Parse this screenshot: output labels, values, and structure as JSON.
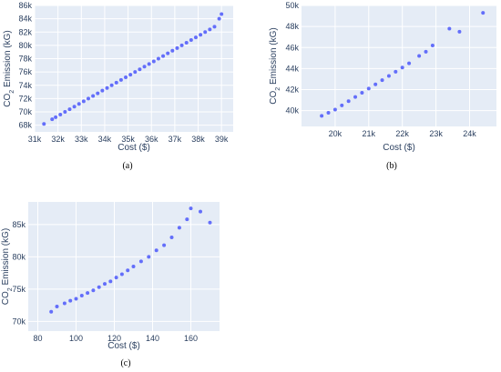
{
  "chart_data": [
    {
      "type": "scatter",
      "panel_label": "(a)",
      "xlabel": "Cost ($)",
      "ylabel_parts": [
        "CO",
        "2",
        " Emission (kG)"
      ],
      "xlim": [
        31000,
        39500
      ],
      "ylim": [
        67000,
        86000
      ],
      "xticks": [
        31000,
        32000,
        33000,
        34000,
        35000,
        36000,
        37000,
        38000,
        39000
      ],
      "xtick_labels": [
        "31k",
        "32k",
        "33k",
        "34k",
        "35k",
        "36k",
        "37k",
        "38k",
        "39k"
      ],
      "yticks": [
        68000,
        70000,
        72000,
        74000,
        76000,
        78000,
        80000,
        82000,
        84000,
        86000
      ],
      "ytick_labels": [
        "68k",
        "70k",
        "72k",
        "74k",
        "76k",
        "78k",
        "80k",
        "82k",
        "84k",
        "86k"
      ],
      "grid": true,
      "marker_color": "#636efa",
      "background": "#e5ecf6",
      "points": [
        [
          31400,
          68200
        ],
        [
          31750,
          68900
        ],
        [
          31900,
          69200
        ],
        [
          32100,
          69600
        ],
        [
          32300,
          70000
        ],
        [
          32500,
          70400
        ],
        [
          32700,
          70800
        ],
        [
          32900,
          71200
        ],
        [
          33100,
          71600
        ],
        [
          33300,
          72000
        ],
        [
          33500,
          72400
        ],
        [
          33700,
          72800
        ],
        [
          33900,
          73200
        ],
        [
          34100,
          73600
        ],
        [
          34300,
          74000
        ],
        [
          34500,
          74400
        ],
        [
          34700,
          74800
        ],
        [
          34900,
          75200
        ],
        [
          35100,
          75600
        ],
        [
          35300,
          76000
        ],
        [
          35500,
          76400
        ],
        [
          35700,
          76800
        ],
        [
          35900,
          77200
        ],
        [
          36100,
          77600
        ],
        [
          36300,
          78000
        ],
        [
          36500,
          78400
        ],
        [
          36700,
          78800
        ],
        [
          36900,
          79200
        ],
        [
          37100,
          79600
        ],
        [
          37300,
          80000
        ],
        [
          37500,
          80400
        ],
        [
          37700,
          80800
        ],
        [
          37900,
          81200
        ],
        [
          38100,
          81600
        ],
        [
          38300,
          82000
        ],
        [
          38500,
          82400
        ],
        [
          38700,
          82800
        ],
        [
          38900,
          84000
        ],
        [
          39000,
          84700
        ]
      ]
    },
    {
      "type": "scatter",
      "panel_label": "(b)",
      "xlabel": "Cost ($)",
      "ylabel_parts": [
        "CO",
        "2",
        " Emission (kG)"
      ],
      "xlim": [
        19000,
        24800
      ],
      "ylim": [
        38500,
        50000
      ],
      "xticks": [
        20000,
        21000,
        22000,
        23000,
        24000
      ],
      "xtick_labels": [
        "20k",
        "21k",
        "22k",
        "23k",
        "24k"
      ],
      "yticks": [
        40000,
        42000,
        44000,
        46000,
        48000,
        50000
      ],
      "ytick_labels": [
        "40k",
        "42k",
        "44k",
        "46k",
        "48k",
        "50k"
      ],
      "grid": true,
      "marker_color": "#636efa",
      "background": "#e5ecf6",
      "points": [
        [
          19600,
          39500
        ],
        [
          19800,
          39800
        ],
        [
          20000,
          40100
        ],
        [
          20200,
          40500
        ],
        [
          20400,
          40900
        ],
        [
          20600,
          41300
        ],
        [
          20800,
          41700
        ],
        [
          21000,
          42100
        ],
        [
          21200,
          42500
        ],
        [
          21400,
          42900
        ],
        [
          21600,
          43300
        ],
        [
          21800,
          43700
        ],
        [
          22000,
          44100
        ],
        [
          22200,
          44500
        ],
        [
          22500,
          45200
        ],
        [
          22700,
          45600
        ],
        [
          22900,
          46200
        ],
        [
          23400,
          47800
        ],
        [
          23700,
          47500
        ],
        [
          24400,
          49300
        ]
      ]
    },
    {
      "type": "scatter",
      "panel_label": "(c)",
      "xlabel": "Cost ($)",
      "ylabel_parts": [
        "CO",
        "2",
        " Emission (kG)"
      ],
      "xlim": [
        75,
        175
      ],
      "ylim": [
        68500,
        88500
      ],
      "xticks": [
        80,
        100,
        120,
        140,
        160
      ],
      "xtick_labels": [
        "80",
        "100",
        "120",
        "140",
        "160"
      ],
      "yticks": [
        70000,
        75000,
        80000,
        85000
      ],
      "ytick_labels": [
        "70k",
        "75k",
        "80k",
        "85k"
      ],
      "grid": true,
      "marker_color": "#636efa",
      "background": "#e5ecf6",
      "points": [
        [
          87,
          71500
        ],
        [
          90,
          72300
        ],
        [
          94,
          72800
        ],
        [
          97,
          73200
        ],
        [
          100,
          73500
        ],
        [
          103,
          74000
        ],
        [
          106,
          74400
        ],
        [
          109,
          74800
        ],
        [
          112,
          75300
        ],
        [
          115,
          75800
        ],
        [
          118,
          76200
        ],
        [
          121,
          76800
        ],
        [
          124,
          77300
        ],
        [
          127,
          77900
        ],
        [
          130,
          78500
        ],
        [
          134,
          79300
        ],
        [
          138,
          80000
        ],
        [
          142,
          81000
        ],
        [
          146,
          81800
        ],
        [
          150,
          83000
        ],
        [
          154,
          84500
        ],
        [
          158,
          85800
        ],
        [
          160,
          87500
        ],
        [
          165,
          87000
        ],
        [
          170,
          85300
        ]
      ]
    }
  ]
}
